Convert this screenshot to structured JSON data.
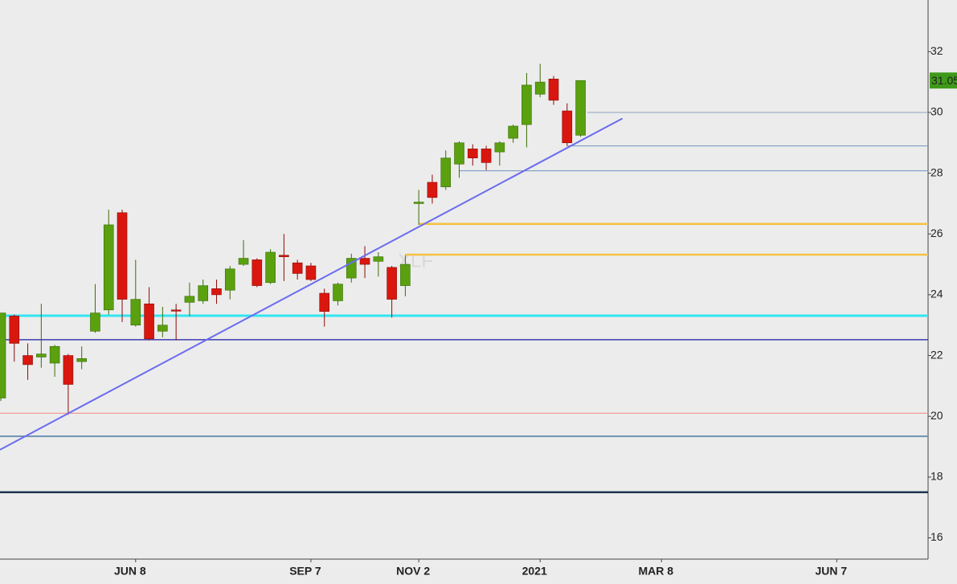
{
  "chart_data": {
    "type": "candlestick",
    "watermark": "XLF",
    "categories": [
      null,
      null,
      null,
      null,
      null,
      null,
      null,
      null,
      null,
      null,
      "JUN 8",
      null,
      null,
      null,
      null,
      null,
      null,
      null,
      null,
      null,
      null,
      null,
      null,
      "SEP 7",
      null,
      null,
      null,
      null,
      null,
      null,
      null,
      "NOV 2",
      null,
      null,
      null,
      null,
      null,
      null,
      null,
      null,
      "2021",
      null,
      null,
      null,
      null,
      null,
      null,
      null,
      null,
      "MAR 8",
      null,
      null,
      null,
      null,
      null,
      null,
      null,
      null,
      null,
      null,
      null,
      null,
      "JUN 7",
      null,
      null,
      null,
      null,
      null,
      null
    ],
    "open": [
      20.6,
      23.3,
      22.0,
      21.95,
      21.75,
      22.0,
      21.8,
      22.8,
      23.5,
      26.7,
      23.0,
      23.7,
      22.8,
      23.5,
      23.75,
      23.8,
      24.2,
      24.15,
      25.0,
      25.15,
      24.4,
      25.3,
      25.05,
      24.95,
      24.05,
      23.8,
      24.55,
      25.2,
      25.1,
      24.9,
      24.3,
      27.0,
      27.7,
      27.55,
      28.3,
      28.8,
      28.8,
      28.7,
      29.15,
      29.6,
      30.6,
      31.1,
      30.05,
      29.25,
      null,
      null,
      null,
      null,
      null,
      null,
      null,
      null,
      null,
      null,
      null,
      null,
      null,
      null,
      null,
      null,
      null,
      null,
      null,
      null,
      null,
      null,
      null,
      null,
      null
    ],
    "high": [
      23.4,
      23.35,
      22.4,
      23.7,
      22.35,
      22.05,
      22.3,
      24.35,
      26.8,
      26.8,
      25.15,
      24.25,
      23.6,
      23.7,
      24.4,
      24.5,
      24.5,
      24.95,
      25.8,
      25.2,
      25.5,
      26.0,
      25.15,
      25.05,
      24.2,
      24.4,
      25.35,
      25.6,
      25.4,
      24.95,
      25.3,
      27.45,
      27.95,
      28.75,
      29.05,
      28.95,
      28.9,
      29.05,
      29.6,
      31.3,
      31.6,
      31.2,
      30.3,
      31.05,
      null,
      null,
      null,
      null,
      null,
      null,
      null,
      null,
      null,
      null,
      null,
      null,
      null,
      null,
      null,
      null,
      null,
      null,
      null,
      null,
      null,
      null,
      null,
      null,
      null
    ],
    "low": [
      20.5,
      21.8,
      21.2,
      21.6,
      21.3,
      20.05,
      21.55,
      22.75,
      23.35,
      23.1,
      22.95,
      22.5,
      22.6,
      22.5,
      23.3,
      23.7,
      23.7,
      23.85,
      24.95,
      24.25,
      24.35,
      24.45,
      24.5,
      24.45,
      22.95,
      23.65,
      24.4,
      24.55,
      24.6,
      23.25,
      23.95,
      26.3,
      27.0,
      27.45,
      27.85,
      28.25,
      28.1,
      28.25,
      29.0,
      28.85,
      30.5,
      30.25,
      28.9,
      29.2,
      null,
      null,
      null,
      null,
      null,
      null,
      null,
      null,
      null,
      null,
      null,
      null,
      null,
      null,
      null,
      null,
      null,
      null,
      null,
      null,
      null,
      null,
      null,
      null,
      null
    ],
    "close": [
      23.4,
      22.4,
      21.7,
      22.05,
      22.3,
      21.05,
      21.9,
      23.4,
      26.3,
      23.85,
      23.85,
      22.55,
      23.0,
      23.47,
      23.95,
      24.3,
      24.0,
      24.85,
      25.2,
      24.3,
      25.4,
      25.25,
      24.7,
      24.5,
      23.45,
      24.35,
      25.2,
      25.0,
      25.25,
      23.85,
      25.0,
      27.05,
      27.2,
      28.5,
      29.0,
      28.5,
      28.35,
      29.0,
      29.55,
      30.9,
      31.0,
      30.4,
      29.0,
      31.05,
      null,
      null,
      null,
      null,
      null,
      null,
      null,
      null,
      null,
      null,
      null,
      null,
      null,
      null,
      null,
      null,
      null,
      null,
      null,
      null,
      null,
      null,
      null,
      null,
      null
    ],
    "up_color": "#5aa00f",
    "down_color": "#d9170f",
    "ylim": [
      15.3,
      33.7
    ],
    "yticks": [
      16,
      18,
      20,
      22,
      24,
      26,
      28,
      30,
      32
    ],
    "last_price": 31.05,
    "last_price_color": "#3f9a1a",
    "hlines": [
      {
        "value": 30.0,
        "color": "#8aa4bf",
        "width": 1,
        "from": 43.5
      },
      {
        "value": 28.9,
        "color": "#6f93c0",
        "width": 1,
        "from": 42
      },
      {
        "value": 28.08,
        "color": "#6f93c0",
        "width": 1,
        "from": 34
      },
      {
        "value": 26.33,
        "color": "#f5c242",
        "width": 2.5,
        "from": 31
      },
      {
        "value": 25.32,
        "color": "#f5c242",
        "width": 2.5,
        "from": 30
      },
      {
        "value": 23.31,
        "color": "#30e6f0",
        "width": 3
      },
      {
        "value": 22.52,
        "color": "#3d3db0",
        "width": 1.5
      },
      {
        "value": 20.1,
        "color": "#f08a80",
        "width": 1
      },
      {
        "value": 19.34,
        "color": "#6f93b0",
        "width": 2
      },
      {
        "value": 17.5,
        "color": "#1f3550",
        "width": 2.5
      }
    ],
    "trendline": {
      "x": [
        -0.06,
        46.1
      ],
      "values": [
        18.9,
        29.8
      ],
      "color": "#6b6bf0"
    }
  }
}
